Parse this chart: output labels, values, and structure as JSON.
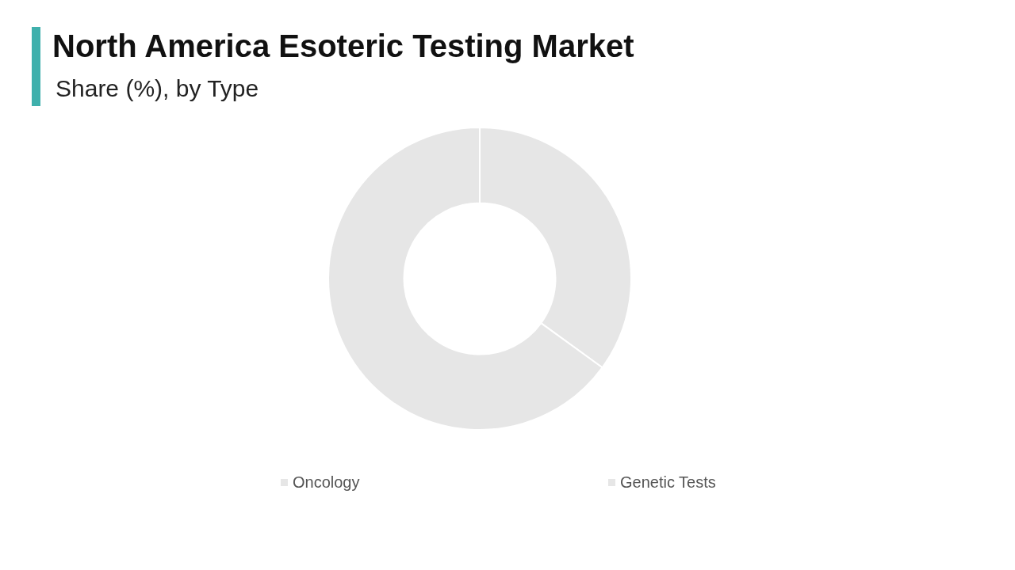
{
  "chart_data": {
    "type": "donut",
    "title": "North America Esoteric Testing Market",
    "subtitle": "Share (%), by Type",
    "categories": [
      "Oncology",
      "Genetic Tests"
    ],
    "values": [
      35,
      65
    ],
    "colors": [
      "#e6e6e6",
      "#e6e6e6"
    ],
    "legend": "bottom"
  }
}
